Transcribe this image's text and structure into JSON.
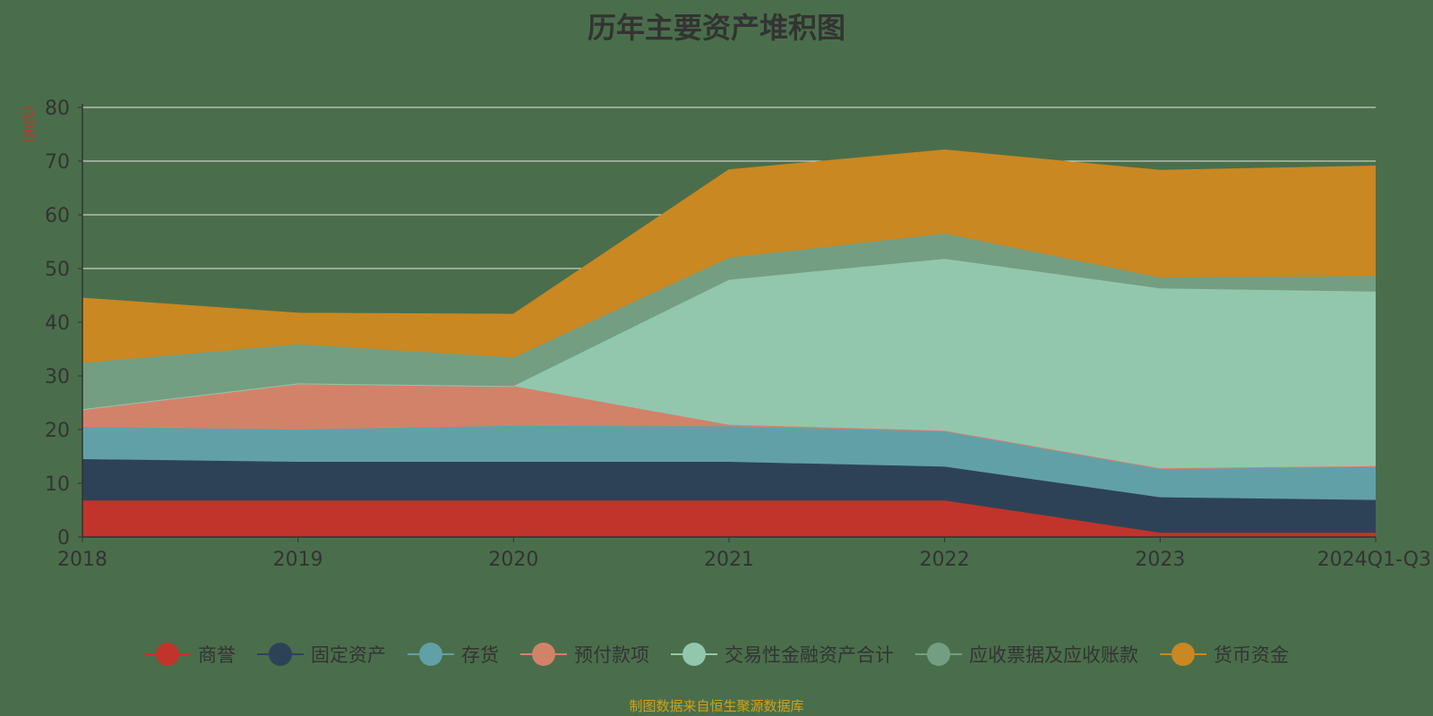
{
  "chart_data": {
    "type": "area",
    "stacked": true,
    "title": "历年主要资产堆积图",
    "ylabel": "(亿元)",
    "x": [
      "2018",
      "2019",
      "2020",
      "2021",
      "2022",
      "2023",
      "2024Q1-Q3"
    ],
    "ylim": [
      0,
      80
    ],
    "yticks": [
      0,
      10,
      20,
      30,
      40,
      50,
      60,
      70,
      80
    ],
    "grid": true,
    "legend_position": "bottom",
    "series": [
      {
        "name": "商誉",
        "color": "#c0342b",
        "values": [
          6.8,
          6.8,
          6.8,
          6.8,
          6.8,
          0.8,
          0.8
        ]
      },
      {
        "name": "固定资产",
        "color": "#2e4257",
        "values": [
          7.7,
          7.2,
          7.2,
          7.2,
          6.3,
          6.6,
          6.1
        ]
      },
      {
        "name": "存货",
        "color": "#62a0a8",
        "values": [
          6.0,
          6.0,
          6.7,
          6.6,
          6.6,
          5.3,
          6.2
        ]
      },
      {
        "name": "预付款项",
        "color": "#d3826a",
        "values": [
          3.3,
          8.6,
          7.4,
          0.3,
          0.1,
          0.1,
          0.1
        ]
      },
      {
        "name": "交易性金融资产合计",
        "color": "#92c7ae",
        "values": [
          0,
          0,
          0,
          27.0,
          32.0,
          33.5,
          32.5
        ]
      },
      {
        "name": "应收票据及应收账款",
        "color": "#739e82",
        "values": [
          8.6,
          7.3,
          5.3,
          4.1,
          4.7,
          2.0,
          2.9
        ]
      },
      {
        "name": "货币资金",
        "color": "#c98822",
        "values": [
          12.0,
          5.7,
          8.0,
          16.3,
          15.5,
          19.9,
          20.4
        ]
      }
    ]
  },
  "source_note": "制图数据来自恒生聚源数据库"
}
